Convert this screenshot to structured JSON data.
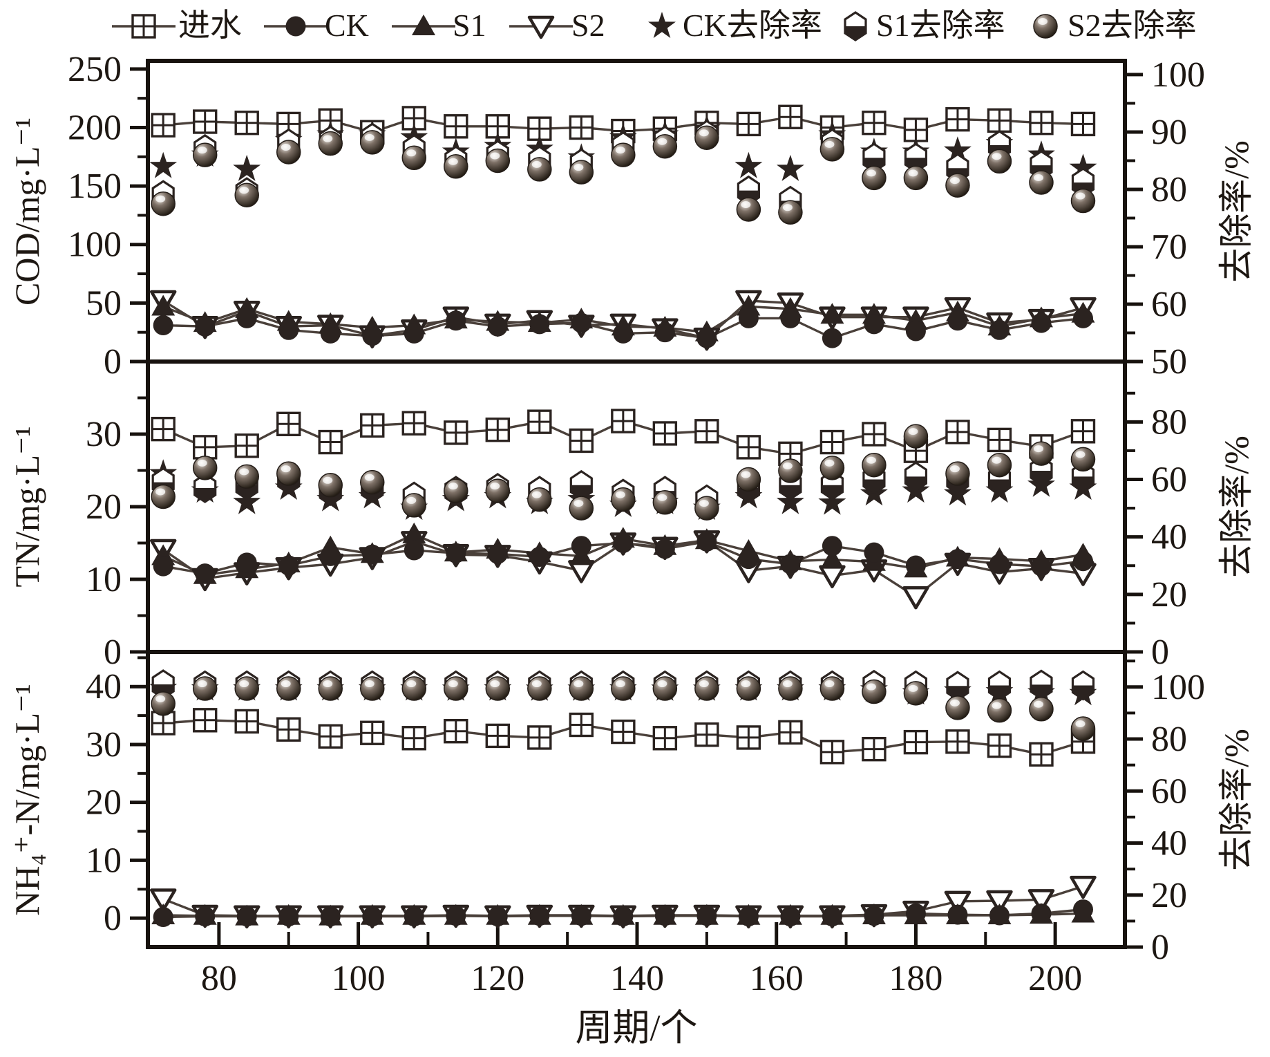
{
  "chart_data": {
    "type": "line",
    "title": "",
    "x_label": "周期/个",
    "x_range": [
      69.8,
      210
    ],
    "x_ticks": [
      80,
      100,
      120,
      140,
      160,
      180,
      200
    ],
    "x_minor_step": 10,
    "colors": {
      "marker": "#2b2320",
      "line": "#4a403a",
      "background": "#ffffff"
    },
    "legend": [
      {
        "label": "进水",
        "marker": "square-open",
        "line": true
      },
      {
        "label": "CK",
        "marker": "circle-filled",
        "line": true
      },
      {
        "label": "S1",
        "marker": "triangle-up",
        "line": true
      },
      {
        "label": "S2",
        "marker": "triangle-down-open",
        "line": true
      },
      {
        "label": "CK去除率",
        "marker": "star",
        "line": false
      },
      {
        "label": "S1去除率",
        "marker": "hexagon-half",
        "line": false
      },
      {
        "label": "S2去除率",
        "marker": "sphere",
        "line": false
      }
    ],
    "cycles": [
      72,
      78,
      84,
      90,
      96,
      102,
      108,
      114,
      120,
      126,
      132,
      138,
      144,
      150,
      156,
      162,
      168,
      174,
      180,
      186,
      192,
      198,
      204
    ],
    "panels": [
      {
        "id": "cod",
        "left_label": "COD/mg·L⁻¹",
        "right_label": "去除率/%",
        "left_range": [
          0,
          257
        ],
        "left_ticks": [
          0,
          50,
          100,
          150,
          200,
          250
        ],
        "left_minor_step": 25,
        "right_range": [
          50,
          102.4
        ],
        "right_ticks": [
          50,
          60,
          70,
          80,
          90,
          100
        ],
        "right_minor_step": 5,
        "series": {
          "influent": [
            202,
            205,
            204,
            203,
            206,
            196,
            208,
            201,
            201,
            199,
            200,
            197,
            199,
            204,
            203,
            209,
            200,
            204,
            198,
            207,
            206,
            204,
            203
          ],
          "ck": [
            31,
            30,
            37,
            27,
            24,
            22,
            24,
            35,
            30,
            32,
            33,
            24,
            25,
            20,
            37,
            37,
            20,
            32,
            26,
            35,
            27,
            33,
            37
          ],
          "s1": [
            47,
            33,
            45,
            34,
            32,
            29,
            31,
            36,
            34,
            33,
            36,
            30,
            29,
            25,
            47,
            45,
            40,
            40,
            35,
            42,
            30,
            37,
            41
          ],
          "s2": [
            52,
            30,
            43,
            30,
            31,
            22,
            27,
            38,
            32,
            35,
            31,
            32,
            28,
            20,
            52,
            50,
            38,
            38,
            38,
            46,
            33,
            36,
            46
          ],
          "ck_rr": [
            84,
            86,
            83.5,
            88.5,
            89.5,
            89.5,
            89,
            86.5,
            87.5,
            87,
            85.5,
            89,
            89.5,
            90.5,
            84,
            83.5,
            89.5,
            86.5,
            86.5,
            86.7,
            88,
            86,
            83.7
          ],
          "s1_rr": [
            79,
            87,
            79.5,
            88,
            88.5,
            89,
            87,
            85,
            86,
            85,
            84.5,
            87.5,
            88.5,
            89.5,
            79.8,
            78,
            88,
            85.5,
            85.5,
            83.7,
            87.7,
            84.2,
            81.2
          ],
          "s2_rr": [
            77.5,
            86,
            79,
            86.5,
            88,
            88.2,
            85.5,
            84,
            85,
            83.5,
            83,
            86,
            87.5,
            89,
            76.5,
            76,
            87,
            82,
            82,
            80.7,
            84.9,
            81.2,
            78
          ]
        }
      },
      {
        "id": "tn",
        "left_label": "TN/mg·L⁻¹",
        "right_label": "去除率/%",
        "left_range": [
          0,
          40
        ],
        "left_ticks": [
          0,
          10,
          20,
          30
        ],
        "left_minor_step": 5,
        "right_range": [
          0,
          101
        ],
        "right_ticks": [
          0,
          20,
          40,
          60,
          80
        ],
        "right_minor_step": 10,
        "series": {
          "influent": [
            30.7,
            28.2,
            28.4,
            31.4,
            28.9,
            31.2,
            31.5,
            30.2,
            30.6,
            31.7,
            29.1,
            31.8,
            30.1,
            30.4,
            28.2,
            27.3,
            28.9,
            30.0,
            27.7,
            30.3,
            29.2,
            28.3,
            30.4
          ],
          "ck": [
            11.8,
            10.8,
            12.3,
            11.9,
            13.2,
            13.4,
            14.0,
            13.6,
            13.5,
            13.1,
            14.6,
            15.0,
            14.2,
            15.2,
            12.8,
            12.1,
            14.6,
            13.7,
            11.9,
            12.8,
            12.1,
            11.8,
            12.5
          ],
          "s1": [
            13.2,
            10.6,
            11.4,
            12.2,
            14.4,
            13.5,
            16.2,
            13.7,
            14.1,
            13.6,
            13.2,
            15.6,
            14.6,
            15.4,
            13.9,
            12.5,
            12.7,
            12.4,
            11.5,
            13.0,
            12.8,
            12.5,
            13.4
          ],
          "s2": [
            14.1,
            10.1,
            10.9,
            11.6,
            12.1,
            13.0,
            15.2,
            13.4,
            13.3,
            12.4,
            11.2,
            15.0,
            14.4,
            15.3,
            11.2,
            11.8,
            10.5,
            11.3,
            7.6,
            12.2,
            11.0,
            11.5,
            10.8
          ],
          "ck_rr": [
            62,
            56,
            52,
            57,
            53,
            54,
            50,
            53,
            54,
            52,
            53,
            51,
            52,
            50,
            54,
            52,
            51.8,
            55,
            56,
            55,
            56,
            58,
            57
          ],
          "s1_rr": [
            59,
            57,
            58,
            60,
            56,
            57,
            54,
            56,
            57,
            56,
            58,
            55,
            56,
            53,
            57,
            58,
            58,
            60,
            61,
            60,
            60,
            63,
            61
          ],
          "s2_rr": [
            54,
            64,
            61,
            62,
            58,
            59,
            51,
            56,
            56,
            53,
            50,
            53,
            52,
            50,
            60,
            63,
            64,
            65,
            75,
            62,
            65,
            69,
            67
          ]
        }
      },
      {
        "id": "nh4",
        "left_label": "NH₄⁺-N/mg·L⁻¹",
        "right_label": "去除率/%",
        "left_range": [
          -5,
          46
        ],
        "left_ticks": [
          0,
          10,
          20,
          30,
          40
        ],
        "left_minor_step": 5,
        "right_range": [
          0,
          113.5
        ],
        "right_ticks": [
          0,
          20,
          40,
          60,
          80,
          100
        ],
        "right_minor_step": 10,
        "series": {
          "influent": [
            33.7,
            34.2,
            34.0,
            32.6,
            31.4,
            32.0,
            31.1,
            32.3,
            31.5,
            31.2,
            33.4,
            32.2,
            31.1,
            31.7,
            31.2,
            32.1,
            28.7,
            29.2,
            30.4,
            30.5,
            29.8,
            28.3,
            30.5
          ],
          "ck": [
            0.2,
            0.3,
            0.3,
            0.3,
            0.3,
            0.3,
            0.3,
            0.4,
            0.3,
            0.4,
            0.4,
            0.3,
            0.4,
            0.4,
            0.3,
            0.3,
            0.3,
            0.4,
            0.8,
            0.6,
            0.5,
            0.8,
            1.5
          ],
          "s1": [
            0.5,
            0.4,
            0.3,
            0.4,
            0.3,
            0.4,
            0.4,
            0.4,
            0.4,
            0.4,
            0.4,
            0.4,
            0.4,
            0.4,
            0.4,
            0.4,
            0.4,
            0.5,
            0.5,
            0.5,
            0.5,
            0.6,
            0.8
          ],
          "s2": [
            3.3,
            0.5,
            0.4,
            0.4,
            0.4,
            0.4,
            0.4,
            0.5,
            0.4,
            0.5,
            0.5,
            0.4,
            0.5,
            0.5,
            0.4,
            0.4,
            0.4,
            0.6,
            1.2,
            2.9,
            3.0,
            3.2,
            5.5
          ],
          "ck_rr": [
            99.5,
            99.3,
            99.3,
            99.3,
            99.3,
            99.3,
            99.3,
            99.2,
            99.3,
            99.2,
            99.2,
            99.3,
            99.2,
            99.2,
            99.3,
            99.3,
            99.3,
            98.9,
            97.8,
            98.5,
            98.2,
            97.8,
            97.5
          ],
          "s1_rr": [
            101,
            100.6,
            100.6,
            100.6,
            100.6,
            100.6,
            100.6,
            100.6,
            100.6,
            100.6,
            100.6,
            100.6,
            100.6,
            100.6,
            100.6,
            100.6,
            100.6,
            100.8,
            100.6,
            100.4,
            100.6,
            100.9,
            100.6
          ],
          "s2_rr": [
            93.6,
            99.4,
            99.4,
            99.4,
            99.4,
            99.4,
            99.4,
            99.4,
            99.4,
            99.4,
            99.4,
            99.4,
            99.4,
            99.4,
            99.4,
            99.4,
            99.4,
            98.2,
            97.6,
            92.0,
            91.0,
            91.5,
            84.0
          ]
        }
      }
    ]
  }
}
